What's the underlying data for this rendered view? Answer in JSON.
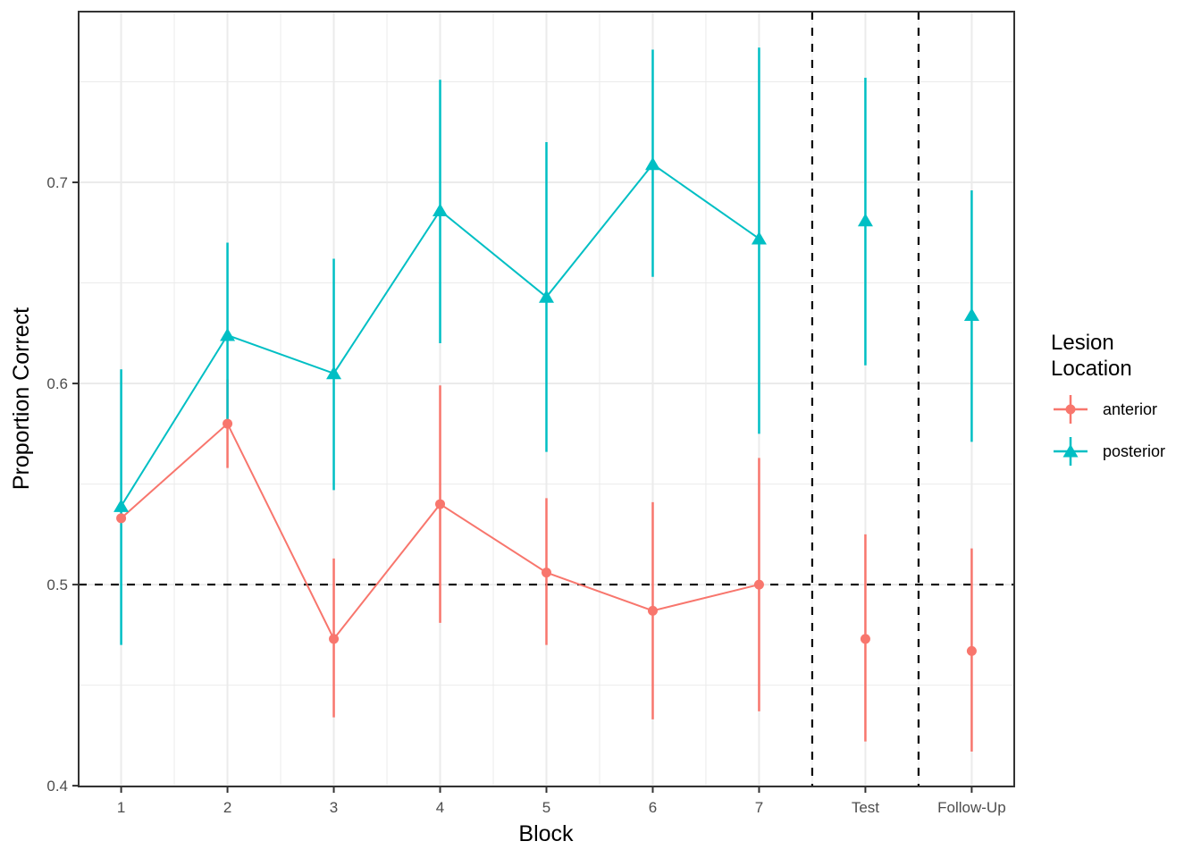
{
  "chart_data": {
    "type": "pointrange-line",
    "title": "",
    "xlabel": "Block",
    "ylabel": "Proportion Correct",
    "x_tick_positions": [
      1,
      2,
      3,
      4,
      5,
      6,
      7,
      8,
      9
    ],
    "x_tick_labels": [
      "1",
      "2",
      "3",
      "4",
      "5",
      "6",
      "7",
      "Test",
      "Follow-Up"
    ],
    "y_ticks": [
      0.4,
      0.5,
      0.6,
      0.7
    ],
    "y_tick_labels": [
      "0.4",
      "0.5",
      "0.6",
      "0.7"
    ],
    "y_minor_ticks": [
      0.45,
      0.55,
      0.65,
      0.75
    ],
    "x_minor_ticks": [
      1.5,
      2.5,
      3.5,
      4.5,
      5.5,
      6.5,
      7.5,
      8.5
    ],
    "xlim": [
      0.6,
      9.4
    ],
    "ylim": [
      0.3996,
      0.7849
    ],
    "grid": true,
    "grid_color": "#ebebeb",
    "panel_border_color": "#333333",
    "tick_color": "#333333",
    "reference_lines": {
      "horizontal_dashed_y": 0.5,
      "vertical_dashed_x": [
        7.5,
        8.5
      ],
      "dash_color": "#000000"
    },
    "legend_title": [
      "Lesion",
      "Location"
    ],
    "legend_position": "right",
    "series": [
      {
        "name": "anterior",
        "color": "#F8766D",
        "marker": "circle",
        "x": [
          1,
          2,
          3,
          4,
          5,
          6,
          7,
          8,
          9
        ],
        "means": [
          0.533,
          0.58,
          0.473,
          0.54,
          0.506,
          0.487,
          0.5,
          0.473,
          0.467
        ],
        "ci_low": [
          null,
          0.558,
          0.434,
          0.481,
          0.47,
          0.433,
          0.437,
          0.422,
          0.417
        ],
        "ci_high": [
          null,
          0.602,
          0.513,
          0.599,
          0.543,
          0.541,
          0.563,
          0.525,
          0.518
        ],
        "connect_through_x": 7
      },
      {
        "name": "posterior",
        "color": "#00BFC4",
        "marker": "triangle",
        "x": [
          1,
          2,
          3,
          4,
          5,
          6,
          7,
          8,
          9
        ],
        "means": [
          0.539,
          0.624,
          0.605,
          0.686,
          0.643,
          0.709,
          0.672,
          0.681,
          0.634
        ],
        "ci_low": [
          0.47,
          0.579,
          0.547,
          0.62,
          0.566,
          0.653,
          0.575,
          0.609,
          0.571
        ],
        "ci_high": [
          0.607,
          0.67,
          0.662,
          0.751,
          0.72,
          0.766,
          0.767,
          0.752,
          0.696
        ],
        "connect_through_x": 7
      }
    ]
  }
}
